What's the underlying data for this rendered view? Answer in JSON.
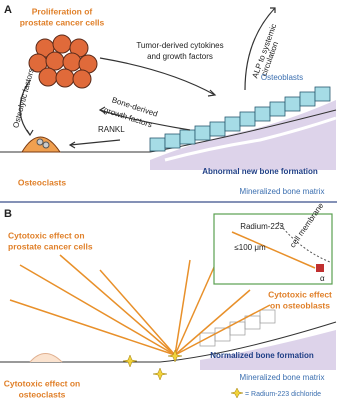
{
  "panel_a": {
    "label": "A",
    "proliferation": [
      "Proliferation of",
      "prostate cancer cells"
    ],
    "tumor_factors": [
      "Tumor-derived cytokines",
      "and growth factors"
    ],
    "alp": [
      "ALP to systemic",
      "circulation"
    ],
    "osteoblasts": "Osteoblasts",
    "osteolytic": "Osteolytic factors",
    "bone_factors": [
      "Bone-derived",
      "growth factors"
    ],
    "rankl": "RANKL",
    "osteoclasts": "Osteoclasts",
    "abnormal": "Abnormal new bone formation",
    "matrix": "Mineralized bone matrix"
  },
  "panel_b": {
    "label": "B",
    "inset": {
      "radium": "Radium-223",
      "range": "≤100 μm",
      "membrane": "cell membrane",
      "alpha": "α"
    },
    "cancer_effect": [
      "Cytotoxic effect on",
      "prostate cancer cells"
    ],
    "osteoblast_effect": [
      "Cytotoxic effect",
      "on osteoblasts"
    ],
    "normalized": "Normalized bone formation",
    "matrix": "Mineralized bone matrix",
    "osteoclast_effect": [
      "Cytotoxic effect on",
      "osteoclasts"
    ],
    "legend": "= Radium-223 dichloride"
  }
}
